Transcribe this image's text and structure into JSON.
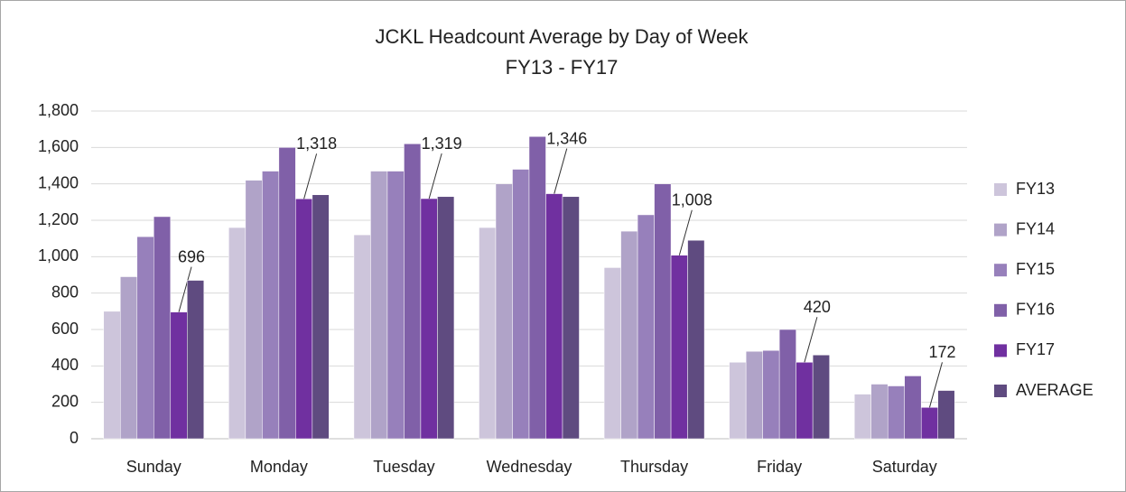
{
  "chart_data": {
    "type": "bar",
    "title": "JCKL Headcount Average by Day of Week",
    "subtitle": "FY13 - FY17",
    "categories": [
      "Sunday",
      "Monday",
      "Tuesday",
      "Wednesday",
      "Thursday",
      "Friday",
      "Saturday"
    ],
    "series": [
      {
        "name": "FY13",
        "color": "#cdc5db",
        "values": [
          700,
          1160,
          1120,
          1160,
          940,
          420,
          245
        ]
      },
      {
        "name": "FY14",
        "color": "#b0a3c8",
        "values": [
          890,
          1420,
          1470,
          1400,
          1140,
          480,
          300
        ]
      },
      {
        "name": "FY15",
        "color": "#9780bb",
        "values": [
          1110,
          1470,
          1470,
          1480,
          1230,
          485,
          290
        ]
      },
      {
        "name": "FY16",
        "color": "#8060a8",
        "values": [
          1220,
          1600,
          1620,
          1660,
          1400,
          600,
          345
        ]
      },
      {
        "name": "FY17",
        "color": "#7030a0",
        "values": [
          696,
          1318,
          1319,
          1346,
          1008,
          420,
          172
        ],
        "value_labels": [
          "696",
          "1,318",
          "1,319",
          "1,346",
          "1,008",
          "420",
          "172"
        ]
      },
      {
        "name": "AVERAGE",
        "color": "#5f4b80",
        "values": [
          870,
          1340,
          1330,
          1330,
          1090,
          460,
          265
        ]
      }
    ],
    "ylim": [
      0,
      1800
    ],
    "yticks": [
      0,
      200,
      400,
      600,
      800,
      {
        "value": 1000,
        "label": "1,000"
      },
      {
        "value": 1200,
        "label": "1,200"
      },
      {
        "value": 1400,
        "label": "1,400"
      },
      {
        "value": 1600,
        "label": "1,600"
      },
      {
        "value": 1800,
        "label": "1,800"
      }
    ],
    "grid": true,
    "legend": "right"
  }
}
